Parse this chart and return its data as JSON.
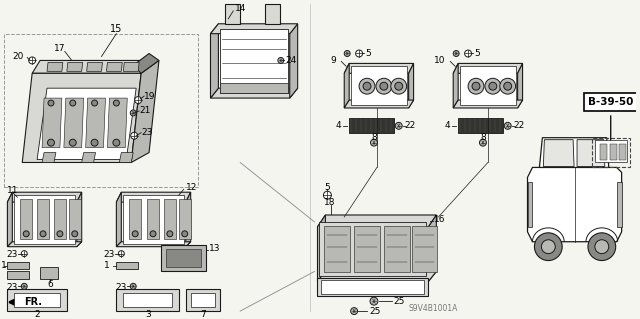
{
  "bg_color": "#f5f5f0",
  "line_color": "#1a1a1a",
  "text_color": "#000000",
  "watermark": "S9V4B1001A",
  "part_color_light": "#d8d8d5",
  "part_color_mid": "#b8b8b5",
  "part_color_dark": "#888885",
  "part_color_black": "#333330",
  "figsize": [
    6.4,
    3.19
  ],
  "dpi": 100
}
